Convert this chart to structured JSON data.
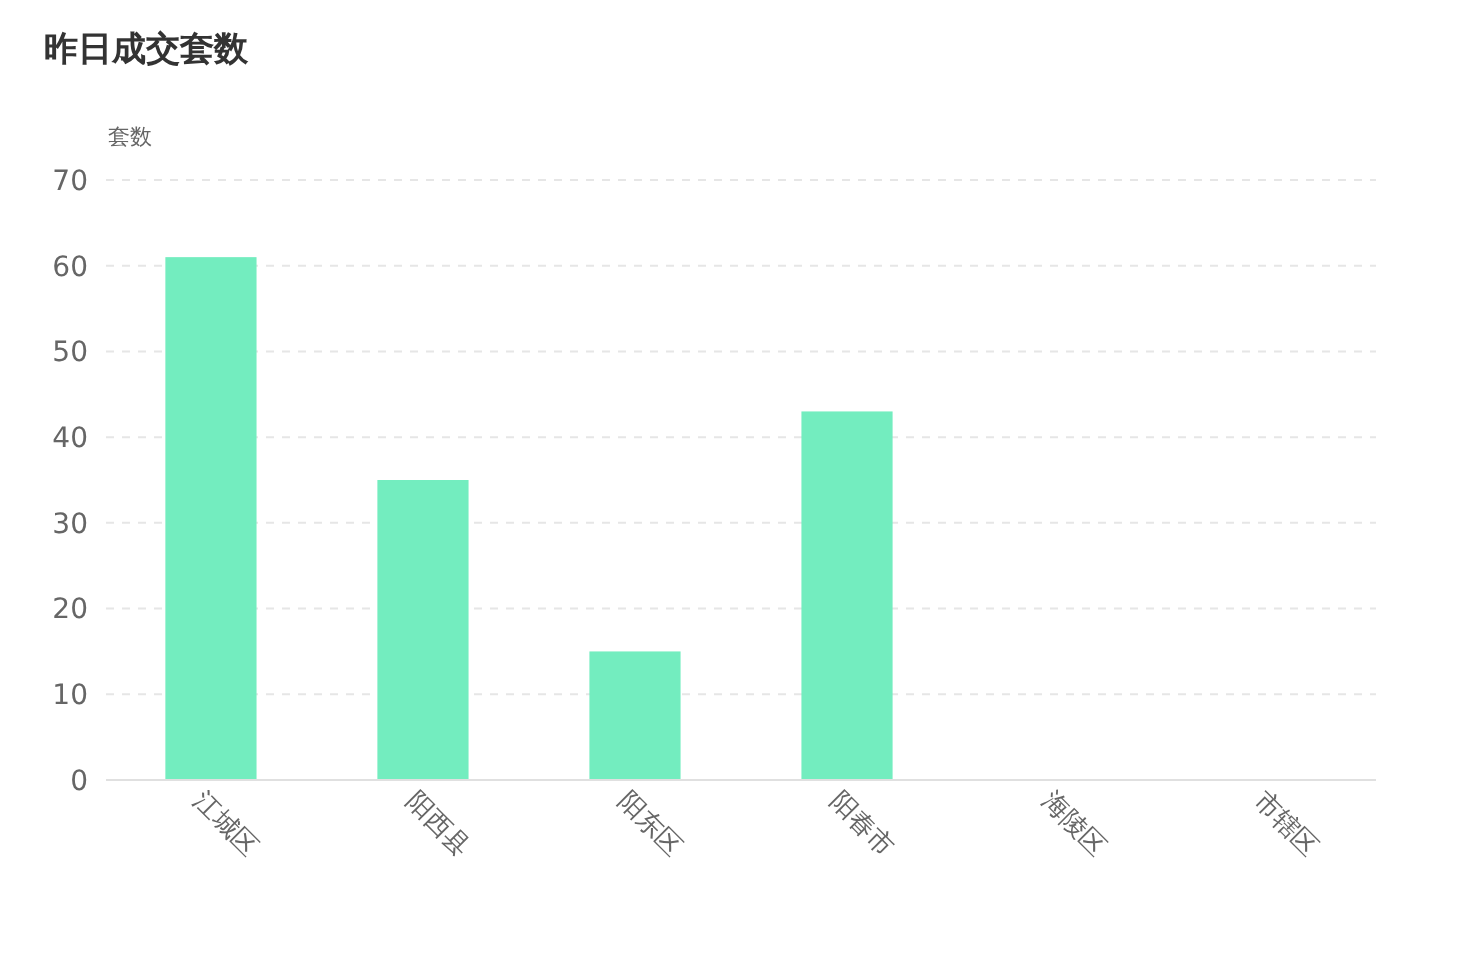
{
  "chart_data": {
    "type": "bar",
    "title": "昨日成交套数",
    "ylabel": "套数",
    "categories": [
      "江城区",
      "阳西县",
      "阳东区",
      "阳春市",
      "海陵区",
      "市辖区"
    ],
    "values": [
      61,
      35,
      15,
      43,
      0,
      0
    ],
    "color": "#73edbf",
    "ylim": [
      0,
      70
    ],
    "yticks": [
      0,
      10,
      20,
      30,
      40,
      50,
      60,
      70
    ],
    "grid": "y"
  }
}
